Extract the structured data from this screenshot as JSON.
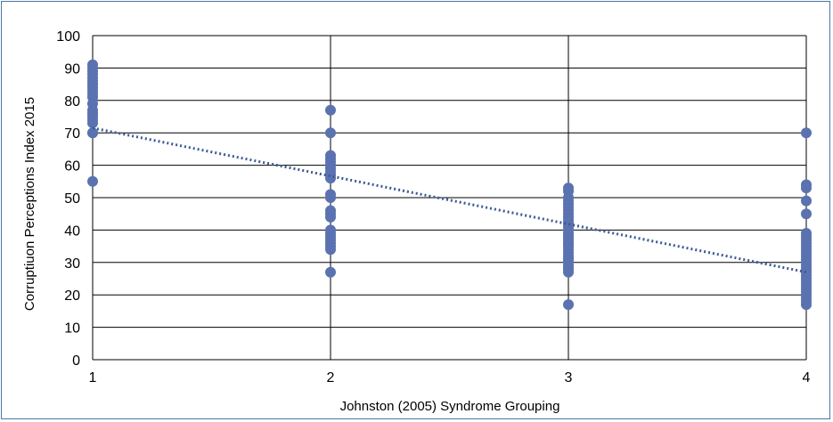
{
  "chart_data": {
    "type": "scatter",
    "title": "",
    "xlabel": "Johnston (2005) Syndrome Grouping",
    "ylabel": "Corruptiuon Perceptions Index 2015",
    "xlim": [
      1,
      4
    ],
    "ylim": [
      0,
      100
    ],
    "x_ticks": [
      "1",
      "2",
      "3",
      "4"
    ],
    "y_ticks": [
      "0",
      "10",
      "20",
      "30",
      "40",
      "50",
      "60",
      "70",
      "80",
      "90",
      "100"
    ],
    "grid": true,
    "legend": "none",
    "marker_color": "#5b72b0",
    "trendline": {
      "style": "dotted",
      "color": "#3d5a96",
      "x": [
        1,
        4
      ],
      "y": [
        71.5,
        27
      ]
    },
    "series": [
      {
        "x": [
          1,
          1,
          1,
          1,
          1,
          1,
          1,
          1,
          1,
          1,
          1,
          1,
          1,
          1,
          1,
          1,
          1,
          1,
          1,
          1,
          1
        ],
        "y": [
          91,
          90,
          89,
          88,
          87,
          86,
          85,
          83,
          82,
          81,
          79,
          77,
          76,
          76,
          75,
          74,
          73,
          70,
          70,
          55,
          84
        ]
      },
      {
        "x": [
          2,
          2,
          2,
          2,
          2,
          2,
          2,
          2,
          2,
          2,
          2,
          2,
          2,
          2,
          2,
          2,
          2,
          2,
          2,
          2,
          2,
          2,
          2
        ],
        "y": [
          77,
          70,
          63,
          62,
          61,
          60,
          58,
          57,
          56,
          51,
          50,
          46,
          45,
          44,
          40,
          38,
          37,
          36,
          35,
          34,
          27,
          59,
          39
        ]
      },
      {
        "x": [
          3,
          3,
          3,
          3,
          3,
          3,
          3,
          3,
          3,
          3,
          3,
          3,
          3,
          3,
          3,
          3,
          3,
          3,
          3,
          3,
          3,
          3,
          3,
          3,
          3,
          3,
          3,
          3,
          3,
          3,
          3,
          3
        ],
        "y": [
          53,
          50,
          48,
          47,
          46,
          45,
          44,
          43,
          42,
          41,
          40,
          39,
          38,
          37,
          36,
          35,
          34,
          33,
          32,
          31,
          30,
          29,
          28,
          27,
          17,
          52,
          49,
          42,
          38,
          36,
          31,
          28
        ]
      },
      {
        "x": [
          4,
          4,
          4,
          4,
          4,
          4,
          4,
          4,
          4,
          4,
          4,
          4,
          4,
          4,
          4,
          4,
          4,
          4,
          4,
          4,
          4,
          4,
          4,
          4,
          4,
          4,
          4,
          4
        ],
        "y": [
          70,
          54,
          53,
          49,
          45,
          39,
          38,
          37,
          36,
          35,
          34,
          33,
          32,
          31,
          30,
          29,
          28,
          27,
          26,
          25,
          24,
          23,
          22,
          21,
          20,
          19,
          18,
          17
        ]
      }
    ]
  }
}
